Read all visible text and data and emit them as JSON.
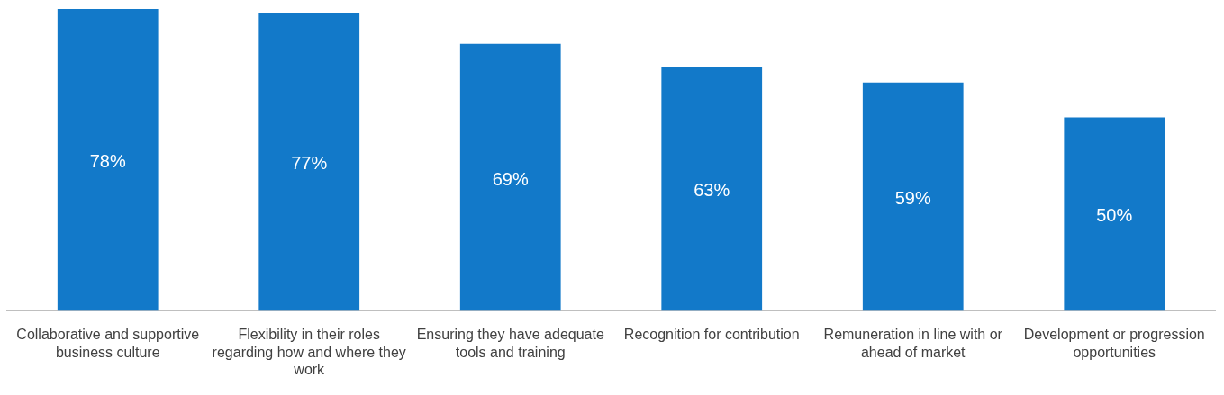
{
  "chart_data": {
    "type": "bar",
    "categories": [
      "Collaborative and supportive business culture",
      "Flexibility in their roles regarding how and where they work",
      "Ensuring they have adequate tools and training",
      "Recognition for contribution",
      "Remuneration in line with or ahead of market",
      "Development or progression opportunities"
    ],
    "values": [
      78,
      77,
      69,
      63,
      59,
      50
    ],
    "value_labels": [
      "78%",
      "77%",
      "69%",
      "63%",
      "59%",
      "50%"
    ],
    "color": "#1279c9",
    "grid": false,
    "legend": false
  }
}
